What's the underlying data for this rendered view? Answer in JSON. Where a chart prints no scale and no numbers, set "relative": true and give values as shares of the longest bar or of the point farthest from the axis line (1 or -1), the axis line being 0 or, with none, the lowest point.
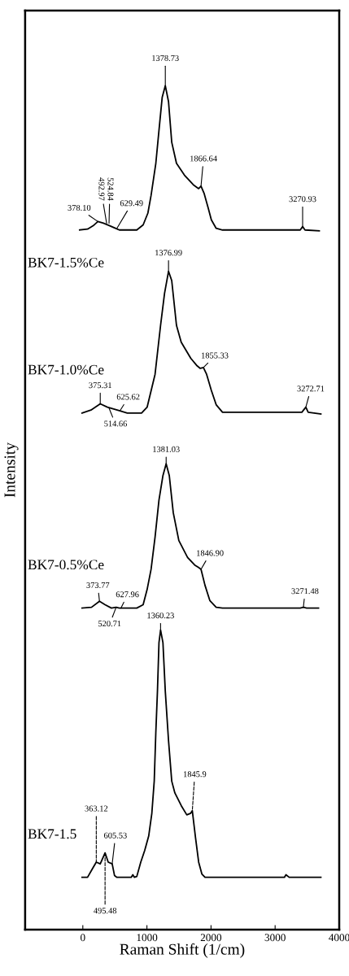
{
  "chart_data": {
    "type": "line",
    "relative": true,
    "xlabel": "Raman Shift (1/cm)",
    "ylabel": "Intensity",
    "xlim": [
      -900,
      4000
    ],
    "xticks": [
      0,
      1000,
      2000,
      3000,
      4000
    ],
    "tick_labels": "x",
    "grid": false,
    "legend": false,
    "marker": "none",
    "line_style": "solid",
    "series": [
      {
        "name": "BK7-1.5%Ce",
        "color": "#000000",
        "x": [
          -50,
          74,
          161,
          235,
          322,
          421,
          508,
          569,
          842,
          941,
          1015,
          1065,
          1139,
          1188,
          1238,
          1287,
          1337,
          1387,
          1461,
          1585,
          1733,
          1807,
          1844,
          1894,
          1956,
          2005,
          2080,
          2179,
          3392,
          3429,
          3466,
          3689
        ],
        "values": [
          0.829,
          0.83,
          0.834,
          0.839,
          0.837,
          0.834,
          0.831,
          0.829,
          0.829,
          0.835,
          0.849,
          0.87,
          0.908,
          0.947,
          0.986,
          1.0,
          0.981,
          0.933,
          0.908,
          0.894,
          0.882,
          0.878,
          0.881,
          0.872,
          0.855,
          0.841,
          0.831,
          0.829,
          0.829,
          0.833,
          0.829,
          0.828
        ]
      },
      {
        "name": "BK7-1.0%Ce",
        "color": "#000000",
        "x": [
          -12,
          136,
          272,
          384,
          569,
          693,
          916,
          1003,
          1127,
          1213,
          1275,
          1337,
          1387,
          1461,
          1535,
          1684,
          1783,
          1832,
          1881,
          1931,
          2005,
          2080,
          2179,
          3417,
          3479,
          3516,
          3714
        ],
        "values": [
          0.612,
          0.616,
          0.623,
          0.619,
          0.615,
          0.612,
          0.612,
          0.619,
          0.658,
          0.716,
          0.754,
          0.78,
          0.769,
          0.716,
          0.696,
          0.677,
          0.668,
          0.665,
          0.666,
          0.658,
          0.639,
          0.622,
          0.613,
          0.613,
          0.619,
          0.613,
          0.611
        ]
      },
      {
        "name": "BK7-0.5%Ce",
        "color": "#000000",
        "x": [
          -12,
          136,
          260,
          347,
          446,
          520,
          569,
          842,
          941,
          1003,
          1065,
          1127,
          1188,
          1250,
          1300,
          1349,
          1411,
          1498,
          1634,
          1745,
          1807,
          1844,
          1906,
          1981,
          2080,
          2179,
          3392,
          3441,
          3491,
          3677
        ],
        "values": [
          0.381,
          0.382,
          0.389,
          0.385,
          0.381,
          0.382,
          0.381,
          0.381,
          0.385,
          0.403,
          0.427,
          0.465,
          0.509,
          0.538,
          0.552,
          0.538,
          0.494,
          0.461,
          0.441,
          0.432,
          0.429,
          0.427,
          0.408,
          0.39,
          0.382,
          0.381,
          0.381,
          0.382,
          0.381,
          0.381
        ]
      },
      {
        "name": "BK7-1.5",
        "color": "#000000",
        "x": [
          -12,
          74,
          149,
          210,
          272,
          347,
          396,
          458,
          495,
          532,
          755,
          780,
          805,
          842,
          904,
          966,
          1028,
          1077,
          1114,
          1139,
          1164,
          1188,
          1213,
          1250,
          1287,
          1337,
          1387,
          1436,
          1535,
          1622,
          1684,
          1708,
          1758,
          1807,
          1857,
          1906,
          3145,
          3169,
          3219,
          3714
        ],
        "values": [
          0.062,
          0.062,
          0.072,
          0.08,
          0.078,
          0.091,
          0.08,
          0.078,
          0.064,
          0.062,
          0.062,
          0.065,
          0.062,
          0.063,
          0.08,
          0.094,
          0.111,
          0.138,
          0.176,
          0.234,
          0.282,
          0.34,
          0.355,
          0.34,
          0.282,
          0.224,
          0.176,
          0.162,
          0.147,
          0.136,
          0.138,
          0.141,
          0.109,
          0.08,
          0.066,
          0.062,
          0.062,
          0.065,
          0.062,
          0.062
        ]
      }
    ],
    "annotations": [
      {
        "text": "378.10",
        "x": 235,
        "y": 0.839
      },
      {
        "text": "492.97",
        "x": 371,
        "y": 0.837
      },
      {
        "text": "524.84",
        "x": 409,
        "y": 0.837
      },
      {
        "text": "629.49",
        "x": 532,
        "y": 0.831
      },
      {
        "text": "1378.73",
        "x": 1287,
        "y": 1.0
      },
      {
        "text": "1866.64",
        "x": 1844,
        "y": 0.881
      },
      {
        "text": "3270.93",
        "x": 3429,
        "y": 0.833
      },
      {
        "text": "375.31",
        "x": 272,
        "y": 0.623
      },
      {
        "text": "514.66",
        "x": 409,
        "y": 0.618
      },
      {
        "text": "625.62",
        "x": 582,
        "y": 0.615
      },
      {
        "text": "1376.99",
        "x": 1337,
        "y": 0.78
      },
      {
        "text": "1855.33",
        "x": 1881,
        "y": 0.666
      },
      {
        "text": "3272.71",
        "x": 3479,
        "y": 0.619
      },
      {
        "text": "373.77",
        "x": 260,
        "y": 0.389
      },
      {
        "text": "520.71",
        "x": 520,
        "y": 0.382
      },
      {
        "text": "627.96",
        "x": 594,
        "y": 0.381
      },
      {
        "text": "1381.03",
        "x": 1300,
        "y": 0.552
      },
      {
        "text": "1846.90",
        "x": 1844,
        "y": 0.427
      },
      {
        "text": "3271.48",
        "x": 3441,
        "y": 0.382
      },
      {
        "text": "363.12",
        "x": 210,
        "y": 0.08
      },
      {
        "text": "495.48",
        "x": 347,
        "y": 0.091
      },
      {
        "text": "605.53",
        "x": 458,
        "y": 0.078
      },
      {
        "text": "1360.23",
        "x": 1213,
        "y": 0.355
      },
      {
        "text": "1845.9",
        "x": 1708,
        "y": 0.141
      }
    ]
  }
}
